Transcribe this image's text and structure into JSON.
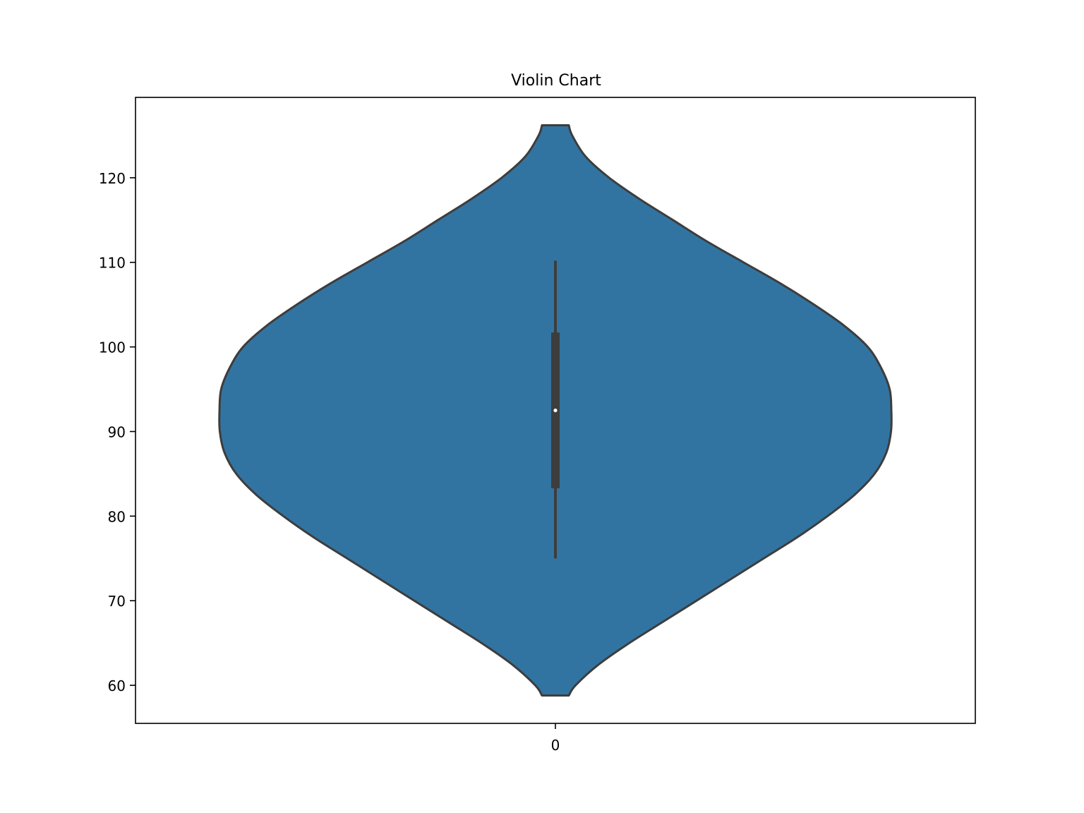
{
  "chart_data": {
    "type": "violin",
    "title": "Violin Chart",
    "xlabel": "",
    "ylabel": "",
    "categories": [
      "0"
    ],
    "ylim": [
      55.5,
      129.5
    ],
    "yticks": [
      60,
      70,
      80,
      90,
      100,
      110,
      120
    ],
    "grid": false,
    "color": "#3274a1",
    "outline_color": "#3d3d3d",
    "violins": [
      {
        "category": "0",
        "density_profile": [
          {
            "y": 58.8,
            "w": 0.04
          },
          {
            "y": 60,
            "w": 0.06
          },
          {
            "y": 62.5,
            "w": 0.13
          },
          {
            "y": 65,
            "w": 0.22
          },
          {
            "y": 67.5,
            "w": 0.32
          },
          {
            "y": 70,
            "w": 0.42
          },
          {
            "y": 72.5,
            "w": 0.52
          },
          {
            "y": 75,
            "w": 0.62
          },
          {
            "y": 77.5,
            "w": 0.72
          },
          {
            "y": 80,
            "w": 0.81
          },
          {
            "y": 82.5,
            "w": 0.89
          },
          {
            "y": 85,
            "w": 0.95
          },
          {
            "y": 87.5,
            "w": 0.985
          },
          {
            "y": 90,
            "w": 0.999
          },
          {
            "y": 92.5,
            "w": 1.0
          },
          {
            "y": 95,
            "w": 0.995
          },
          {
            "y": 97.5,
            "w": 0.97
          },
          {
            "y": 100,
            "w": 0.93
          },
          {
            "y": 102.5,
            "w": 0.86
          },
          {
            "y": 105,
            "w": 0.77
          },
          {
            "y": 107.5,
            "w": 0.67
          },
          {
            "y": 110,
            "w": 0.56
          },
          {
            "y": 112.5,
            "w": 0.45
          },
          {
            "y": 115,
            "w": 0.35
          },
          {
            "y": 117.5,
            "w": 0.25
          },
          {
            "y": 120,
            "w": 0.16
          },
          {
            "y": 122.5,
            "w": 0.09
          },
          {
            "y": 125,
            "w": 0.05
          },
          {
            "y": 126.2,
            "w": 0.04
          }
        ],
        "box": {
          "whisker_low": 75,
          "q1": 83.3,
          "median": 92.5,
          "q3": 101.7,
          "whisker_high": 110.2
        }
      }
    ]
  }
}
